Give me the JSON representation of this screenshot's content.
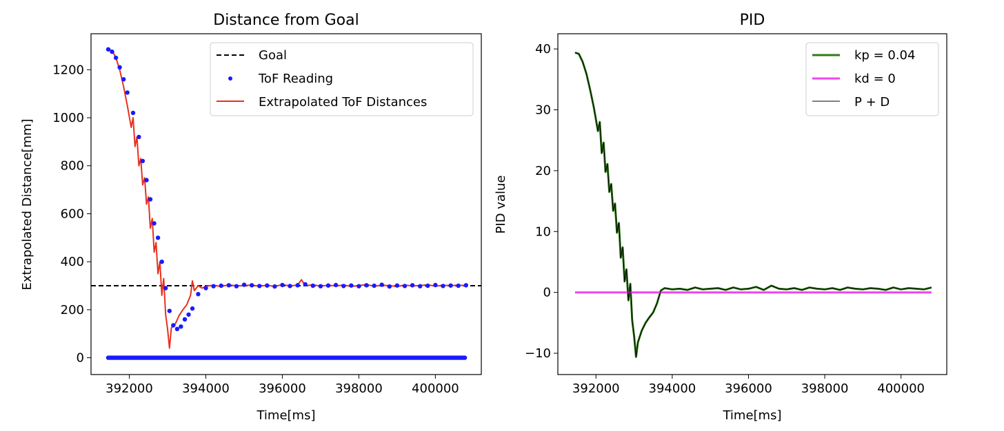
{
  "chart_data": [
    {
      "type": "line",
      "title": "Distance from Goal",
      "xlabel": "Time[ms]",
      "ylabel": "Extrapolated Distance[mm]",
      "xlim": [
        391000,
        401200
      ],
      "ylim": [
        -70,
        1350
      ],
      "xticks": [
        392000,
        394000,
        396000,
        398000,
        400000
      ],
      "xtick_labels": [
        "392000",
        "394000",
        "396000",
        "398000",
        "400000"
      ],
      "yticks": [
        0,
        200,
        400,
        600,
        800,
        1000,
        1200
      ],
      "ytick_labels": [
        "0",
        "200",
        "400",
        "600",
        "800",
        "1000",
        "1200"
      ],
      "grid": false,
      "legend_position": "upper right",
      "goal": {
        "name": "Goal",
        "value": 300,
        "color": "#000000",
        "style": "dashed"
      },
      "series": [
        {
          "name": "ToF Reading",
          "kind": "scatter",
          "color": "#1a1aff",
          "x": [
            391450,
            391550,
            391650,
            391750,
            391850,
            391950,
            392100,
            392250,
            392350,
            392450,
            392550,
            392650,
            392750,
            392850,
            392950,
            393050,
            393150,
            393250,
            393350,
            393450,
            393550,
            393650,
            393800,
            394000,
            394200,
            394400,
            394600,
            394800,
            395000,
            395200,
            395400,
            395600,
            395800,
            396000,
            396200,
            396400,
            396600,
            396800,
            397000,
            397200,
            397400,
            397600,
            397800,
            398000,
            398200,
            398400,
            398600,
            398800,
            399000,
            399200,
            399400,
            399600,
            399800,
            400000,
            400200,
            400400,
            400600,
            400800
          ],
          "y": [
            1285,
            1275,
            1250,
            1210,
            1160,
            1105,
            1020,
            920,
            820,
            740,
            660,
            560,
            500,
            400,
            290,
            195,
            135,
            120,
            130,
            160,
            180,
            205,
            265,
            290,
            298,
            300,
            302,
            298,
            304,
            302,
            299,
            301,
            297,
            303,
            299,
            302,
            306,
            300,
            298,
            301,
            303,
            299,
            301,
            298,
            302,
            300,
            304,
            297,
            301,
            299,
            302,
            298,
            300,
            303,
            299,
            301,
            300,
            302
          ],
          "baseline_y": 0,
          "baseline_x_range": [
            391450,
            400800
          ]
        },
        {
          "name": "Extrapolated ToF Distances",
          "kind": "line",
          "color": "#e8301c",
          "x": [
            391450,
            391550,
            391650,
            391750,
            391850,
            391950,
            392050,
            392100,
            392150,
            392200,
            392250,
            392300,
            392350,
            392400,
            392450,
            392500,
            392550,
            392600,
            392650,
            392700,
            392750,
            392800,
            392850,
            392900,
            392950,
            393000,
            393050,
            393100,
            393200,
            393300,
            393400,
            393500,
            393600,
            393650,
            393700,
            393800,
            393900,
            394000,
            394200,
            394400,
            394600,
            394800,
            395000,
            395200,
            395400,
            395600,
            395800,
            396000,
            396200,
            396400,
            396500,
            396600,
            396800,
            397000,
            397200,
            397400,
            397600,
            397800,
            398000,
            398200,
            398400,
            398600,
            398800,
            399000,
            399200,
            399400,
            399600,
            399800,
            400000,
            400200,
            400400,
            400600,
            400800
          ],
          "y": [
            1285,
            1280,
            1250,
            1200,
            1130,
            1050,
            960,
            1000,
            880,
            920,
            800,
            830,
            720,
            750,
            640,
            670,
            540,
            580,
            440,
            480,
            350,
            400,
            260,
            330,
            180,
            120,
            40,
            125,
            140,
            175,
            200,
            220,
            260,
            320,
            280,
            300,
            290,
            298,
            302,
            297,
            304,
            299,
            301,
            303,
            298,
            302,
            297,
            305,
            299,
            303,
            325,
            300,
            304,
            298,
            302,
            299,
            303,
            297,
            301,
            305,
            298,
            302,
            300,
            297,
            303,
            299,
            301,
            304,
            298,
            302,
            300,
            303,
            300
          ]
        }
      ]
    },
    {
      "type": "line",
      "title": "PID",
      "xlabel": "Time[ms]",
      "ylabel": "PID value",
      "xlim": [
        391000,
        401200
      ],
      "ylim": [
        -13.5,
        42.5
      ],
      "xticks": [
        392000,
        394000,
        396000,
        398000,
        400000
      ],
      "xtick_labels": [
        "392000",
        "394000",
        "396000",
        "398000",
        "400000"
      ],
      "yticks": [
        -10,
        0,
        10,
        20,
        30,
        40
      ],
      "ytick_labels": [
        "−10",
        "0",
        "10",
        "20",
        "30",
        "40"
      ],
      "grid": false,
      "legend_position": "upper right",
      "series": [
        {
          "name": "kp = 0.04",
          "color": "#2f7a17",
          "width": 3,
          "x": [
            391450,
            391550,
            391650,
            391750,
            391850,
            391950,
            392050,
            392100,
            392150,
            392200,
            392250,
            392300,
            392350,
            392400,
            392450,
            392500,
            392550,
            392600,
            392650,
            392700,
            392750,
            392800,
            392850,
            392900,
            392950,
            393000,
            393050,
            393100,
            393200,
            393300,
            393400,
            393500,
            393600,
            393700,
            393800,
            394000,
            394200,
            394400,
            394600,
            394800,
            395000,
            395200,
            395400,
            395600,
            395800,
            396000,
            396200,
            396400,
            396600,
            396800,
            397000,
            397200,
            397400,
            397600,
            397800,
            398000,
            398200,
            398400,
            398600,
            398800,
            399000,
            399200,
            399400,
            399600,
            399800,
            400000,
            400200,
            400400,
            400600,
            400800
          ],
          "y": [
            39.4,
            39.2,
            37.9,
            35.9,
            33.2,
            30.2,
            26.5,
            28.0,
            22.9,
            24.6,
            19.8,
            21.1,
            16.5,
            17.8,
            13.4,
            14.6,
            9.8,
            11.4,
            5.7,
            7.4,
            1.8,
            3.8,
            -1.3,
            1.4,
            -4.6,
            -7.2,
            -10.6,
            -8.2,
            -6.3,
            -5.0,
            -4.1,
            -3.3,
            -1.8,
            0.3,
            0.7,
            0.5,
            0.6,
            0.4,
            0.8,
            0.5,
            0.6,
            0.7,
            0.4,
            0.8,
            0.5,
            0.6,
            0.9,
            0.4,
            1.1,
            0.6,
            0.5,
            0.7,
            0.4,
            0.8,
            0.6,
            0.5,
            0.7,
            0.4,
            0.8,
            0.6,
            0.5,
            0.7,
            0.6,
            0.4,
            0.8,
            0.5,
            0.7,
            0.6,
            0.5,
            0.8
          ]
        },
        {
          "name": "kd = 0",
          "color": "#ee44ee",
          "width": 3,
          "x": [
            391450,
            400800
          ],
          "y": [
            0,
            0
          ]
        },
        {
          "name": "P + D",
          "color": "#000000",
          "width": 1,
          "x": [
            391450,
            391550,
            391650,
            391750,
            391850,
            391950,
            392050,
            392100,
            392150,
            392200,
            392250,
            392300,
            392350,
            392400,
            392450,
            392500,
            392550,
            392600,
            392650,
            392700,
            392750,
            392800,
            392850,
            392900,
            392950,
            393000,
            393050,
            393100,
            393200,
            393300,
            393400,
            393500,
            393600,
            393700,
            393800,
            394000,
            394200,
            394400,
            394600,
            394800,
            395000,
            395200,
            395400,
            395600,
            395800,
            396000,
            396200,
            396400,
            396600,
            396800,
            397000,
            397200,
            397400,
            397600,
            397800,
            398000,
            398200,
            398400,
            398600,
            398800,
            399000,
            399200,
            399400,
            399600,
            399800,
            400000,
            400200,
            400400,
            400600,
            400800
          ],
          "y": [
            39.4,
            39.2,
            37.9,
            35.9,
            33.2,
            30.2,
            26.5,
            28.0,
            22.9,
            24.6,
            19.8,
            21.1,
            16.5,
            17.8,
            13.4,
            14.6,
            9.8,
            11.4,
            5.7,
            7.4,
            1.8,
            3.8,
            -1.3,
            1.4,
            -4.6,
            -7.2,
            -10.6,
            -8.2,
            -6.3,
            -5.0,
            -4.1,
            -3.3,
            -1.8,
            0.3,
            0.7,
            0.5,
            0.6,
            0.4,
            0.8,
            0.5,
            0.6,
            0.7,
            0.4,
            0.8,
            0.5,
            0.6,
            0.9,
            0.4,
            1.1,
            0.6,
            0.5,
            0.7,
            0.4,
            0.8,
            0.6,
            0.5,
            0.7,
            0.4,
            0.8,
            0.6,
            0.5,
            0.7,
            0.6,
            0.4,
            0.8,
            0.5,
            0.7,
            0.6,
            0.5,
            0.8
          ]
        }
      ]
    }
  ]
}
